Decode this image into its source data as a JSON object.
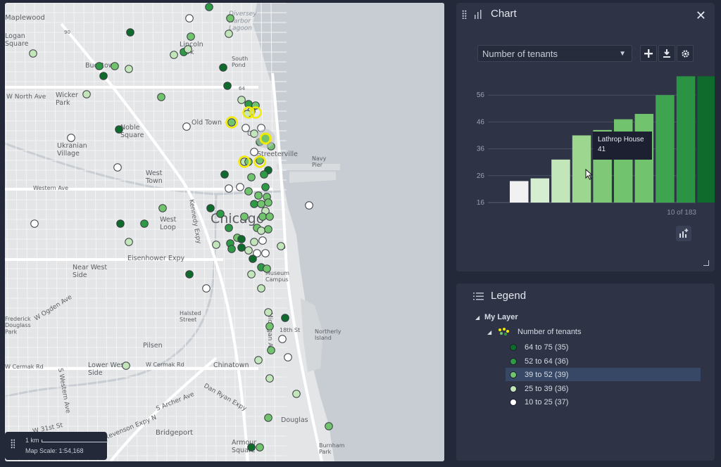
{
  "map": {
    "labels": {
      "maplewood": "Maplewood",
      "logan_square": "Logan\nSquare",
      "lincoln_park": "Lincoln\nPark",
      "diversey_harbor": "Diversey\nHarbor\nLagoon",
      "south_pond": "South\nPond",
      "bucktown": "Bucktown",
      "n_north_ave": "W North Ave",
      "wicker_park": "Wicker\nPark",
      "old_town": "Old Town",
      "noble_square": "Noble\nSquare",
      "ukranian_village": "Ukranian\nVillage",
      "west_town": "West\nTown",
      "western_ave": "Western Ave",
      "kennedy_expy": "Kennedy Expy",
      "west_loop": "West\nLoop",
      "chicago": "Chicago",
      "eisenhower_expy": "Eisenhower Expy",
      "near_west_side": "Near West\nSide",
      "streeterville": "Streeterville",
      "navy_pier": "Navy\nPier",
      "museum_campus": "Museum\nCampus",
      "w_ogden_ave": "W Ogden Ave",
      "frederick_douglass": "Frederick\nDouglass\nPark",
      "halsted_street": "Halsted\nStreet",
      "michigan_ave": "Michigan Ave",
      "18th_st": "18th St",
      "northerly_island": "Northerly\nIsland",
      "pilsen": "Pilsen",
      "w_cermak_rd": "W Cermak Rd",
      "w_cermak_rd2": "W Cermak Rd",
      "lower_west_side": "Lower West\nSide",
      "chinatown": "Chinatown",
      "s_western_ave": "S Western Ave",
      "dan_ryan_expy": "Dan Ryan Expy",
      "s_archer_ave": "S Archer Ave",
      "stevenson_expy": "Stevenson Expy N",
      "bridgeport": "Bridgeport",
      "douglas": "Douglas",
      "armour_square": "Armour\nSquare",
      "burnham_park": "Burnham\nPark",
      "w_31st_st": "W 31st St",
      "cottage": "Co",
      "loop": "op",
      "highway_90": "90",
      "highway_64": "64"
    }
  },
  "scale": {
    "distance": "1 km",
    "text": "Map Scale: 1:54,168"
  },
  "chart_panel": {
    "title": "Chart",
    "select_value": "Number of tenants",
    "count_text": "10 of 183",
    "tooltip": {
      "name": "Lathrop House",
      "value": "41"
    }
  },
  "chart_data": {
    "type": "bar",
    "values": [
      24,
      25,
      32,
      41,
      43,
      47,
      49,
      56,
      63,
      63
    ],
    "colors": [
      "#f1f1f1",
      "#d6eed0",
      "#c2e5b9",
      "#9dd68f",
      "#7fc877",
      "#72c36d",
      "#72c36d",
      "#3fa450",
      "#2a9444",
      "#0e6b2c"
    ],
    "yticks": [
      16,
      26,
      36,
      46,
      56
    ],
    "ylim": [
      16,
      66
    ],
    "grid": true
  },
  "legend_panel": {
    "title": "Legend",
    "layer_name": "My Layer",
    "field_name": "Number of tenants",
    "classes": [
      {
        "label": "64 to 75 (35)",
        "color": "#0e6b2c"
      },
      {
        "label": "52 to 64 (36)",
        "color": "#2f9a45"
      },
      {
        "label": "39 to 52 (39)",
        "color": "#72c36d"
      },
      {
        "label": "25 to 39 (36)",
        "color": "#c2e5b9"
      },
      {
        "label": "10 to 25 (37)",
        "color": "#ffffff"
      }
    ]
  },
  "colors": {
    "panel_bg": "#2e3446",
    "app_bg": "#232938",
    "selection_yellow": "#f2ea00",
    "legend_highlight": "#364866"
  },
  "icons": {
    "chart_panel": "bar-chart-icon",
    "legend_panel": "list-icon",
    "add": "plus-icon",
    "download": "download-icon",
    "settings": "gear-icon",
    "close": "close-icon",
    "add_chart": "add-chart-icon"
  }
}
